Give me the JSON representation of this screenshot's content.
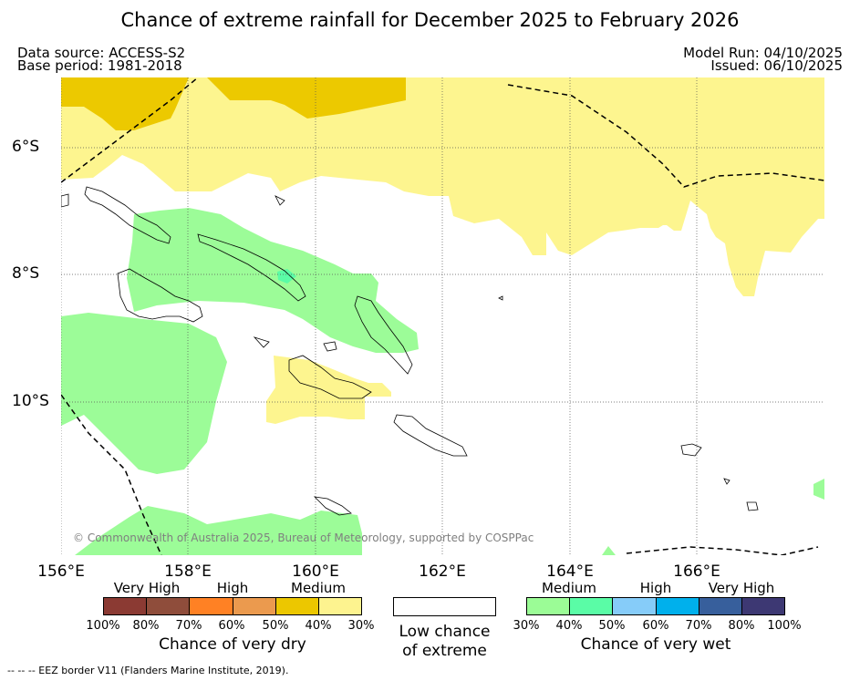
{
  "title": "Chance of extreme rainfall for December 2025 to February 2026",
  "meta": {
    "data_source": "Data source: ACCESS-S2",
    "base_period": "Base period: 1981-2018",
    "model_run": "Model Run: 04/10/2025",
    "issued": "Issued: 06/10/2025"
  },
  "map": {
    "lon_labels": [
      "156°E",
      "158°E",
      "160°E",
      "162°E",
      "164°E",
      "166°E"
    ],
    "lat_labels": [
      "6°S",
      "8°S",
      "10°S"
    ],
    "copyright": "© Commonwealth of Australia 2025, Bureau of Meteorology, supported by COSPPac"
  },
  "legend": {
    "dry": {
      "categories": [
        "Very High",
        "High",
        "Medium"
      ],
      "ticks": [
        "100%",
        "80%",
        "70%",
        "60%",
        "50%",
        "40%",
        "30%"
      ],
      "colors": [
        "#8b3a33",
        "#8f4d3b",
        "#ff8124",
        "#eb9a4e",
        "#ecc700",
        "#fdf38f"
      ],
      "caption": "Chance of very dry"
    },
    "low": {
      "caption_line1": "Low chance",
      "caption_line2": "of extreme"
    },
    "wet": {
      "categories": [
        "Medium",
        "High",
        "Very High"
      ],
      "ticks": [
        "30%",
        "40%",
        "50%",
        "60%",
        "70%",
        "80%",
        "100%"
      ],
      "colors": [
        "#9bfc96",
        "#5afca6",
        "#86ccf9",
        "#00b0ec",
        "#375f9c",
        "#3d3873"
      ],
      "caption": "Chance of very wet"
    }
  },
  "footer": "-- -- -- EEZ border V11 (Flanders Marine Institute, 2019)."
}
